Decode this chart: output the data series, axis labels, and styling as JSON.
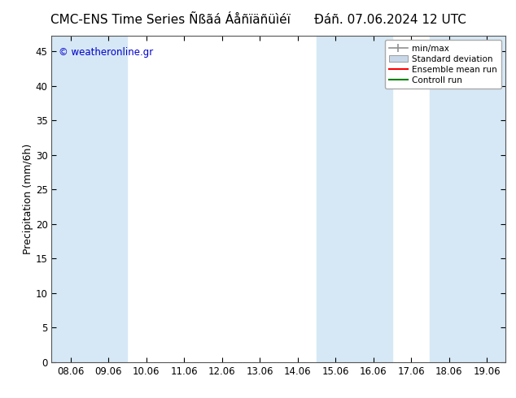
{
  "title": "CMC-ENS Time Series Ñßãá Áåñïäñüìéï",
  "title2": "Đáñ. 07.06.2024 12 UTC",
  "ylabel": "Precipitation (mm/6h)",
  "xlim_dates": [
    "08.06",
    "09.06",
    "10.06",
    "11.06",
    "12.06",
    "13.06",
    "14.06",
    "15.06",
    "16.06",
    "17.06",
    "18.06",
    "19.06"
  ],
  "ylim": [
    0,
    47.25
  ],
  "yticks": [
    0,
    5,
    10,
    15,
    20,
    25,
    30,
    35,
    40,
    45
  ],
  "shaded_bands": [
    {
      "xstart": 0.0,
      "xend": 2.0
    },
    {
      "xstart": 7.0,
      "xend": 9.0
    },
    {
      "xstart": 10.0,
      "xend": 12.0
    }
  ],
  "shaded_color": "#d6e8f5",
  "legend_labels": [
    "min/max",
    "Standard deviation",
    "Ensemble mean run",
    "Controll run"
  ],
  "legend_colors": [
    "#a0a0a0",
    "#c8d8e8",
    "#ff0000",
    "#008000"
  ],
  "watermark": "© weatheronline.gr",
  "watermark_color": "#0000cc",
  "background_color": "#ffffff",
  "plot_bg_color": "#ffffff",
  "title_fontsize": 11,
  "axis_fontsize": 9,
  "tick_fontsize": 8.5
}
